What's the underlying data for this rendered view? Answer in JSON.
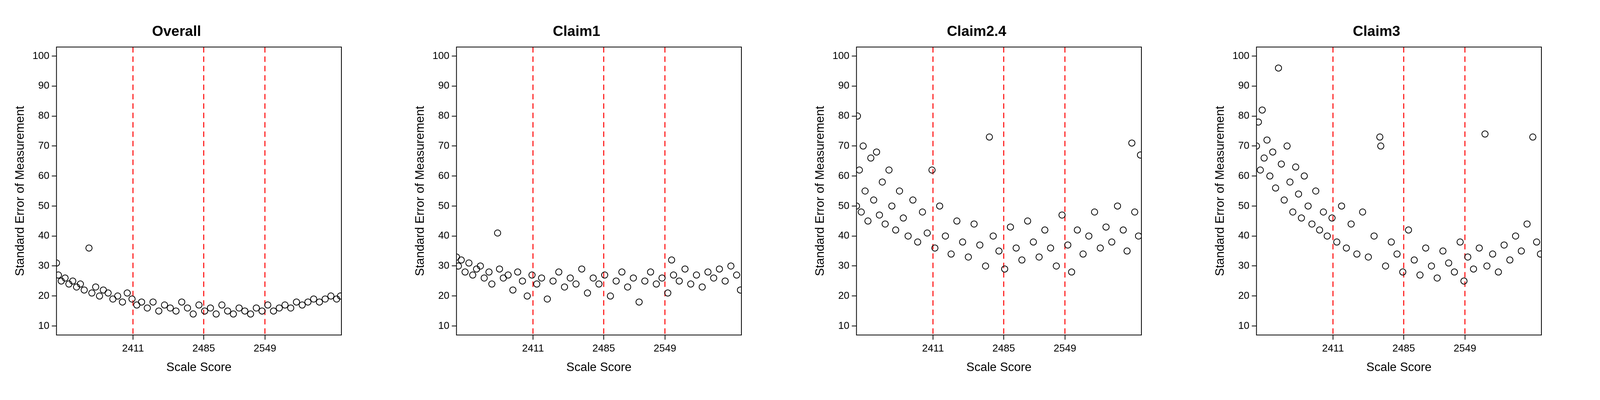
{
  "chart_data": [
    {
      "type": "scatter",
      "title": "Overall",
      "x_label": "Scale Score",
      "y_label": "Standard Error of Measurement",
      "color": "#000000",
      "marker": "open_circle",
      "grid": "x",
      "xlim": [
        2331,
        2629
      ],
      "ylim": [
        7,
        103
      ],
      "xticks": [
        2411,
        2485,
        2549
      ],
      "yticks": [
        10,
        20,
        30,
        40,
        50,
        60,
        70,
        80,
        90,
        100
      ],
      "x": [
        2331,
        2333,
        2336,
        2340,
        2344,
        2348,
        2352,
        2356,
        2360,
        2365,
        2368,
        2372,
        2376,
        2380,
        2385,
        2390,
        2395,
        2400,
        2405,
        2410,
        2415,
        2420,
        2426,
        2432,
        2438,
        2444,
        2450,
        2456,
        2462,
        2468,
        2474,
        2480,
        2486,
        2492,
        2498,
        2504,
        2510,
        2516,
        2522,
        2528,
        2534,
        2540,
        2546,
        2552,
        2558,
        2564,
        2570,
        2576,
        2582,
        2588,
        2594,
        2600,
        2606,
        2612,
        2618,
        2624,
        2628
      ],
      "y": [
        31,
        27,
        25,
        26,
        24,
        25,
        23,
        24,
        22,
        36,
        21,
        23,
        20,
        22,
        21,
        19,
        20,
        18,
        21,
        19,
        17,
        18,
        16,
        18,
        15,
        17,
        16,
        15,
        18,
        16,
        14,
        17,
        15,
        16,
        14,
        17,
        15,
        14,
        16,
        15,
        14,
        16,
        15,
        17,
        15,
        16,
        17,
        16,
        18,
        17,
        18,
        19,
        18,
        19,
        20,
        19,
        20
      ]
    },
    {
      "type": "scatter",
      "title": "Claim1",
      "x_label": "Scale Score",
      "y_label": "Standard Error of Measurement",
      "color": "#000000",
      "marker": "open_circle",
      "grid": "x",
      "xlim": [
        2331,
        2629
      ],
      "ylim": [
        7,
        103
      ],
      "xticks": [
        2411,
        2485,
        2549
      ],
      "yticks": [
        10,
        20,
        30,
        40,
        50,
        60,
        70,
        80,
        90,
        100
      ],
      "x": [
        2331,
        2333,
        2336,
        2340,
        2344,
        2348,
        2352,
        2356,
        2360,
        2365,
        2368,
        2374,
        2376,
        2380,
        2385,
        2390,
        2395,
        2400,
        2405,
        2410,
        2415,
        2420,
        2426,
        2432,
        2438,
        2444,
        2450,
        2456,
        2462,
        2468,
        2474,
        2480,
        2486,
        2492,
        2498,
        2504,
        2510,
        2516,
        2522,
        2528,
        2534,
        2540,
        2546,
        2552,
        2556,
        2558,
        2564,
        2570,
        2576,
        2582,
        2588,
        2594,
        2600,
        2606,
        2612,
        2618,
        2624,
        2628
      ],
      "y": [
        33,
        30,
        32,
        28,
        31,
        27,
        29,
        30,
        26,
        28,
        24,
        41,
        29,
        26,
        27,
        22,
        28,
        25,
        20,
        27,
        24,
        26,
        19,
        25,
        28,
        23,
        26,
        24,
        29,
        21,
        26,
        24,
        27,
        20,
        25,
        28,
        23,
        26,
        18,
        25,
        28,
        24,
        26,
        21,
        32,
        27,
        25,
        29,
        24,
        27,
        23,
        28,
        26,
        29,
        25,
        30,
        27,
        22
      ]
    },
    {
      "type": "scatter",
      "title": "Claim2.4",
      "x_label": "Scale Score",
      "y_label": "Standard Error of Measurement",
      "color": "#000000",
      "marker": "open_circle",
      "grid": "x",
      "xlim": [
        2331,
        2629
      ],
      "ylim": [
        7,
        103
      ],
      "xticks": [
        2411,
        2485,
        2549
      ],
      "yticks": [
        10,
        20,
        30,
        40,
        50,
        60,
        70,
        80,
        90,
        100
      ],
      "x": [
        2331,
        2332,
        2334,
        2336,
        2338,
        2340,
        2343,
        2346,
        2349,
        2352,
        2355,
        2358,
        2361,
        2365,
        2368,
        2372,
        2376,
        2380,
        2385,
        2390,
        2395,
        2400,
        2405,
        2410,
        2413,
        2418,
        2424,
        2430,
        2436,
        2442,
        2448,
        2454,
        2460,
        2466,
        2470,
        2474,
        2480,
        2486,
        2492,
        2498,
        2504,
        2510,
        2516,
        2522,
        2528,
        2534,
        2540,
        2546,
        2552,
        2556,
        2562,
        2568,
        2574,
        2580,
        2586,
        2592,
        2598,
        2604,
        2610,
        2614,
        2619,
        2622,
        2626,
        2628
      ],
      "y": [
        50,
        80,
        62,
        48,
        70,
        55,
        45,
        66,
        52,
        68,
        47,
        58,
        44,
        62,
        50,
        42,
        55,
        46,
        40,
        52,
        38,
        48,
        41,
        62,
        36,
        50,
        40,
        34,
        45,
        38,
        33,
        44,
        37,
        30,
        73,
        40,
        35,
        29,
        43,
        36,
        32,
        45,
        38,
        33,
        42,
        36,
        30,
        47,
        37,
        28,
        42,
        34,
        40,
        48,
        36,
        43,
        38,
        50,
        42,
        35,
        71,
        48,
        40,
        67
      ]
    },
    {
      "type": "scatter",
      "title": "Claim3",
      "x_label": "Scale Score",
      "y_label": "Standard Error of Measurement",
      "color": "#000000",
      "marker": "open_circle",
      "grid": "x",
      "xlim": [
        2331,
        2629
      ],
      "ylim": [
        7,
        103
      ],
      "xticks": [
        2411,
        2485,
        2549
      ],
      "yticks": [
        10,
        20,
        30,
        40,
        50,
        60,
        70,
        80,
        90,
        100
      ],
      "x": [
        2331,
        2333,
        2335,
        2337,
        2339,
        2342,
        2345,
        2348,
        2351,
        2354,
        2357,
        2360,
        2363,
        2366,
        2369,
        2372,
        2375,
        2378,
        2381,
        2385,
        2389,
        2393,
        2397,
        2401,
        2405,
        2410,
        2415,
        2420,
        2425,
        2430,
        2436,
        2442,
        2448,
        2454,
        2460,
        2461,
        2466,
        2472,
        2478,
        2484,
        2490,
        2496,
        2502,
        2508,
        2514,
        2520,
        2526,
        2532,
        2538,
        2544,
        2548,
        2552,
        2558,
        2564,
        2570,
        2572,
        2578,
        2584,
        2590,
        2596,
        2602,
        2608,
        2614,
        2620,
        2624,
        2628
      ],
      "y": [
        70,
        78,
        62,
        82,
        66,
        72,
        60,
        68,
        56,
        96,
        64,
        52,
        70,
        58,
        48,
        63,
        54,
        46,
        60,
        50,
        44,
        55,
        42,
        48,
        40,
        46,
        38,
        50,
        36,
        44,
        34,
        48,
        33,
        40,
        73,
        70,
        30,
        38,
        34,
        28,
        42,
        32,
        27,
        36,
        30,
        26,
        35,
        31,
        28,
        38,
        25,
        33,
        29,
        36,
        74,
        30,
        34,
        28,
        37,
        32,
        40,
        35,
        44,
        73,
        38,
        34
      ]
    }
  ]
}
